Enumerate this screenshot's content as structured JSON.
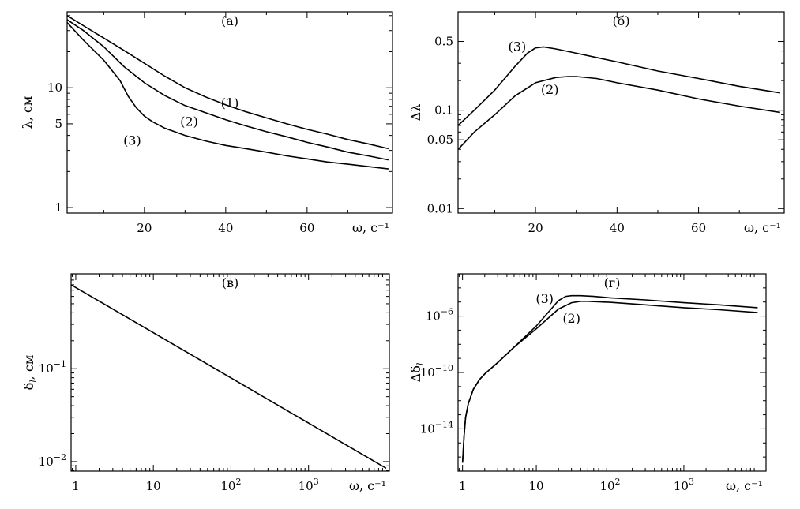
{
  "chart_data": [
    {
      "panel": "(а)",
      "type": "line",
      "xlabel": "ω, с⁻¹",
      "ylabel": "λ, см",
      "xscale": "linear",
      "yscale": "log",
      "xlim": [
        1,
        81
      ],
      "ylim": [
        0.9,
        43
      ],
      "xticks": [
        20,
        40,
        60
      ],
      "yticks": [
        {
          "v": 1,
          "label": "1"
        },
        {
          "v": 5,
          "label": "5"
        },
        {
          "v": 10,
          "label": "10"
        }
      ],
      "minor_yticks": [
        2,
        3,
        4,
        6,
        7,
        8,
        9,
        20,
        30,
        40
      ],
      "grid": false,
      "series": [
        {
          "label": "(1)",
          "label_at": [
            41,
            7.4
          ],
          "x": [
            1,
            5,
            10,
            15,
            20,
            25,
            30,
            35,
            40,
            45,
            50,
            55,
            60,
            65,
            70,
            75,
            80
          ],
          "y": [
            40,
            33,
            26,
            20.5,
            16,
            12.5,
            10,
            8.4,
            7.2,
            6.3,
            5.6,
            5.0,
            4.5,
            4.1,
            3.7,
            3.4,
            3.1
          ]
        },
        {
          "label": "(2)",
          "label_at": [
            31,
            5.2
          ],
          "x": [
            1,
            5,
            10,
            15,
            20,
            25,
            30,
            35,
            40,
            45,
            50,
            55,
            60,
            65,
            70,
            75,
            80
          ],
          "y": [
            37,
            30,
            22,
            15,
            11,
            8.6,
            7.1,
            6.2,
            5.4,
            4.8,
            4.3,
            3.9,
            3.5,
            3.2,
            2.9,
            2.7,
            2.5
          ]
        },
        {
          "label": "(3)",
          "label_at": [
            17,
            3.6
          ],
          "x": [
            1,
            5,
            10,
            14,
            16,
            18,
            20,
            22,
            25,
            30,
            35,
            40,
            45,
            50,
            55,
            60,
            65,
            70,
            75,
            80
          ],
          "y": [
            35,
            25,
            17,
            11.5,
            8.5,
            6.8,
            5.8,
            5.2,
            4.6,
            4.0,
            3.6,
            3.3,
            3.1,
            2.9,
            2.7,
            2.55,
            2.4,
            2.3,
            2.2,
            2.1
          ]
        }
      ]
    },
    {
      "panel": "(б)",
      "type": "line",
      "xlabel": "ω, с⁻¹",
      "ylabel": "Δλ",
      "xscale": "linear",
      "yscale": "log",
      "xlim": [
        1,
        81
      ],
      "ylim": [
        0.009,
        1.0
      ],
      "xticks": [
        20,
        40,
        60
      ],
      "yticks": [
        {
          "v": 0.01,
          "label": "0.01"
        },
        {
          "v": 0.05,
          "label": "0.05"
        },
        {
          "v": 0.1,
          "label": "0.1"
        },
        {
          "v": 0.5,
          "label": "0.5"
        }
      ],
      "minor_yticks": [
        0.02,
        0.03,
        0.04,
        0.06,
        0.07,
        0.08,
        0.09,
        0.2,
        0.3,
        0.4
      ],
      "grid": false,
      "series": [
        {
          "label": "(3)",
          "label_at": [
            15.5,
            0.44
          ],
          "x": [
            1,
            5,
            10,
            15,
            18,
            20,
            22,
            25,
            30,
            40,
            50,
            60,
            70,
            80
          ],
          "y": [
            0.07,
            0.1,
            0.16,
            0.28,
            0.38,
            0.43,
            0.44,
            0.42,
            0.38,
            0.31,
            0.25,
            0.21,
            0.175,
            0.15
          ]
        },
        {
          "label": "(2)",
          "label_at": [
            23.5,
            0.16
          ],
          "x": [
            1,
            5,
            10,
            15,
            20,
            25,
            28,
            30,
            35,
            40,
            50,
            60,
            70,
            80
          ],
          "y": [
            0.04,
            0.06,
            0.09,
            0.14,
            0.19,
            0.215,
            0.22,
            0.22,
            0.21,
            0.19,
            0.16,
            0.13,
            0.11,
            0.095
          ]
        }
      ]
    },
    {
      "panel": "(в)",
      "type": "line",
      "xlabel": "ω, с⁻¹",
      "ylabel": "δ_l, см",
      "xscale": "log",
      "yscale": "log",
      "xlim": [
        0.87,
        11000
      ],
      "ylim": [
        0.0079,
        1.05
      ],
      "xticks": [
        {
          "v": 1,
          "label": "1"
        },
        {
          "v": 10,
          "label": "10"
        },
        {
          "v": 100,
          "label": "10",
          "exp": "2"
        },
        {
          "v": 1000,
          "label": "10",
          "exp": "3"
        }
      ],
      "yticks": [
        {
          "v": 0.01,
          "label": "10",
          "exp": "−2"
        },
        {
          "v": 0.1,
          "label": "10",
          "exp": "−1"
        }
      ],
      "grid": false,
      "series": [
        {
          "label": "",
          "x": [
            0.87,
            10000
          ],
          "y": [
            0.8,
            0.0085
          ]
        }
      ]
    },
    {
      "panel": "(г)",
      "type": "line",
      "xlabel": "ω, с⁻¹",
      "ylabel": "Δδ_l",
      "xscale": "log",
      "yscale": "log",
      "xlim": [
        0.87,
        13000
      ],
      "ylim_exp": [
        -17,
        -3
      ],
      "xticks": [
        {
          "v": 1,
          "label": "1"
        },
        {
          "v": 10,
          "label": "10"
        },
        {
          "v": 100,
          "label": "10",
          "exp": "2"
        },
        {
          "v": 1000,
          "label": "10",
          "exp": "3"
        }
      ],
      "yticks": [
        {
          "e": -14,
          "label": "10",
          "exp": "−14"
        },
        {
          "e": -10,
          "label": "10",
          "exp": "−10"
        },
        {
          "e": -6,
          "label": "10",
          "exp": "−6"
        }
      ],
      "grid": false,
      "series": [
        {
          "label": "(3)",
          "label_at": [
            13,
            -4.8
          ],
          "x": [
            1,
            1.05,
            1.1,
            1.2,
            1.4,
            1.7,
            2,
            3,
            5,
            10,
            20,
            25,
            30,
            40,
            60,
            100,
            300,
            1000,
            3000,
            10000
          ],
          "exp": [
            -16.4,
            -14.5,
            -13.2,
            -12.2,
            -11.2,
            -10.5,
            -10.1,
            -9.3,
            -8.2,
            -6.7,
            -4.9,
            -4.6,
            -4.55,
            -4.55,
            -4.6,
            -4.7,
            -4.85,
            -5.05,
            -5.2,
            -5.4
          ]
        },
        {
          "label": "(2)",
          "label_at": [
            30,
            -6.2
          ],
          "x": [
            1,
            1.05,
            1.1,
            1.2,
            1.4,
            1.7,
            2,
            3,
            5,
            10,
            20,
            30,
            40,
            50,
            60,
            100,
            300,
            1000,
            3000,
            10000
          ],
          "exp": [
            -16.4,
            -14.5,
            -13.2,
            -12.2,
            -11.2,
            -10.5,
            -10.1,
            -9.3,
            -8.2,
            -6.9,
            -5.5,
            -5.05,
            -4.95,
            -4.95,
            -4.97,
            -5.02,
            -5.2,
            -5.4,
            -5.55,
            -5.75
          ]
        }
      ]
    }
  ]
}
